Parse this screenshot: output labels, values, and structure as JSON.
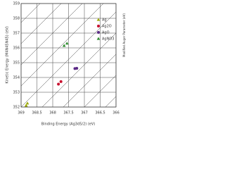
{
  "chart_data": {
    "type": "scatter",
    "y_label": "Kinetic Energy (M4N45N45) (eV)",
    "x_label": "Binding Energy (Ag3d5/2) (eV)",
    "side_label": "Modified Auger Parameter (eV)",
    "xlim": [
      369,
      366
    ],
    "ylim": [
      352,
      359
    ],
    "xticks": [
      369,
      368.5,
      368,
      367.5,
      367,
      366.5,
      366
    ],
    "yticks": [
      352,
      353,
      354,
      355,
      356,
      357,
      358,
      359
    ],
    "grid": true,
    "series": [
      {
        "name": "Ag",
        "color": "#9aa800",
        "marker": "triangle",
        "x": [
          368.84,
          368.8
        ],
        "values": [
          352.1,
          352.25
        ]
      },
      {
        "name": "Ag2O",
        "color": "#c8102e",
        "marker": "circle",
        "x": [
          367.82,
          367.74
        ],
        "values": [
          353.55,
          353.72
        ]
      },
      {
        "name": "AgO",
        "color": "#5b2a86",
        "marker": "circle",
        "x": [
          367.3,
          367.24
        ],
        "values": [
          354.6,
          354.62
        ]
      },
      {
        "name": "AgNO3",
        "color": "#2e8b2e",
        "marker": "triangle",
        "x": [
          367.64,
          367.55
        ],
        "values": [
          356.15,
          356.3
        ]
      }
    ]
  }
}
